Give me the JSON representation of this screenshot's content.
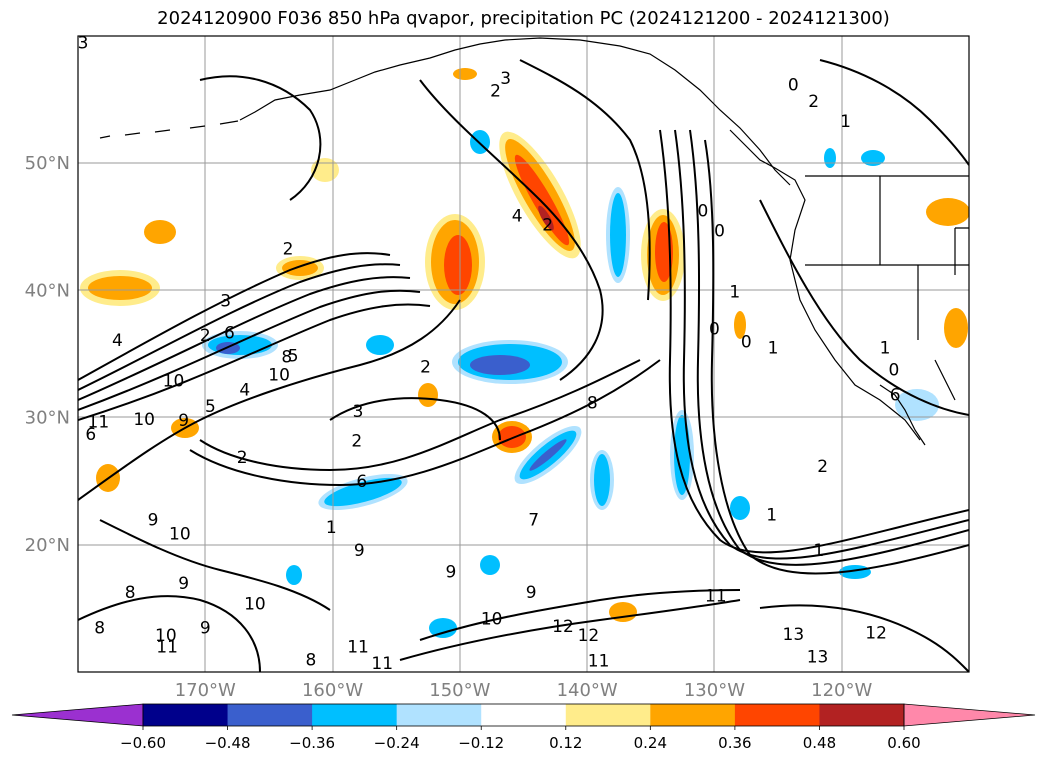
{
  "chart_data": {
    "type": "heatmap",
    "title": "2024120900 F036 850 hPa qvapor, precipitation PC (2024121200 - 2024121300)",
    "map": {
      "lon_range": [
        -180,
        -110
      ],
      "lat_range": [
        10,
        60
      ],
      "lat_ticks": [
        {
          "value": 50,
          "label": "50°N"
        },
        {
          "value": 40,
          "label": "40°N"
        },
        {
          "value": 30,
          "label": "30°N"
        },
        {
          "value": 20,
          "label": "20°N"
        }
      ],
      "lon_ticks": [
        {
          "value": -170,
          "label": "170°W"
        },
        {
          "value": -160,
          "label": "160°W"
        },
        {
          "value": -150,
          "label": "150°W"
        },
        {
          "value": -140,
          "label": "140°W"
        },
        {
          "value": -130,
          "label": "130°W"
        },
        {
          "value": -120,
          "label": "120°W"
        }
      ],
      "grid": true
    },
    "colorbar": {
      "levels": [
        -0.6,
        -0.48,
        -0.36,
        -0.24,
        -0.12,
        0.12,
        0.24,
        0.36,
        0.48,
        0.6
      ],
      "tick_labels": [
        "−0.60",
        "−0.48",
        "−0.36",
        "−0.24",
        "−0.12",
        "0.12",
        "0.24",
        "0.36",
        "0.48",
        "0.60"
      ],
      "colors": [
        "#9b30d0",
        "#00008b",
        "#3a5fcd",
        "#00bfff",
        "#b0e2ff",
        "#ffffff",
        "#ffec8b",
        "#ffa500",
        "#ff4500",
        "#b22222",
        "#ff88aa"
      ],
      "extend": "both"
    },
    "contour_labels": [
      {
        "text": "3",
        "lon": -179.6,
        "lat": 59.5
      },
      {
        "text": "3",
        "lon": -146.4,
        "lat": 56.7
      },
      {
        "text": "2",
        "lon": -147.2,
        "lat": 55.7
      },
      {
        "text": "0",
        "lon": -123.8,
        "lat": 56.2
      },
      {
        "text": "2",
        "lon": -122.2,
        "lat": 54.9
      },
      {
        "text": "1",
        "lon": -119.7,
        "lat": 53.3
      },
      {
        "text": "4",
        "lon": -145.5,
        "lat": 45.9
      },
      {
        "text": "2",
        "lon": -143.1,
        "lat": 45.2
      },
      {
        "text": "0",
        "lon": -130.9,
        "lat": 46.3
      },
      {
        "text": "0",
        "lon": -129.6,
        "lat": 44.7
      },
      {
        "text": "1",
        "lon": -128.4,
        "lat": 39.9
      },
      {
        "text": "2",
        "lon": -170.0,
        "lat": 36.5
      },
      {
        "text": "2",
        "lon": -163.5,
        "lat": 43.3
      },
      {
        "text": "3",
        "lon": -168.4,
        "lat": 39.2
      },
      {
        "text": "4",
        "lon": -176.9,
        "lat": 36.1
      },
      {
        "text": "5",
        "lon": -163.1,
        "lat": 34.9
      },
      {
        "text": "6",
        "lon": -168.1,
        "lat": 36.7
      },
      {
        "text": "8",
        "lon": -163.6,
        "lat": 34.8
      },
      {
        "text": "10",
        "lon": -164.2,
        "lat": 33.4
      },
      {
        "text": "10",
        "lon": -172.5,
        "lat": 32.9
      },
      {
        "text": "4",
        "lon": -166.9,
        "lat": 32.2
      },
      {
        "text": "5",
        "lon": -169.6,
        "lat": 30.9
      },
      {
        "text": "9",
        "lon": -171.7,
        "lat": 29.8
      },
      {
        "text": "10",
        "lon": -174.8,
        "lat": 29.9
      },
      {
        "text": "11",
        "lon": -178.4,
        "lat": 29.7
      },
      {
        "text": "6",
        "lon": -179.0,
        "lat": 28.7
      },
      {
        "text": "3",
        "lon": -158.0,
        "lat": 30.5
      },
      {
        "text": "2",
        "lon": -158.1,
        "lat": 28.2
      },
      {
        "text": "2",
        "lon": -167.1,
        "lat": 26.9
      },
      {
        "text": "2",
        "lon": -152.7,
        "lat": 34.0
      },
      {
        "text": "8",
        "lon": -139.6,
        "lat": 31.2
      },
      {
        "text": "6",
        "lon": -157.7,
        "lat": 25.0
      },
      {
        "text": "1",
        "lon": -160.1,
        "lat": 21.4
      },
      {
        "text": "7",
        "lon": -144.2,
        "lat": 22.0
      },
      {
        "text": "9",
        "lon": -174.1,
        "lat": 22.0
      },
      {
        "text": "10",
        "lon": -172.0,
        "lat": 20.9
      },
      {
        "text": "9",
        "lon": -157.9,
        "lat": 19.6
      },
      {
        "text": "9",
        "lon": -150.7,
        "lat": 17.9
      },
      {
        "text": "9",
        "lon": -171.7,
        "lat": 17.0
      },
      {
        "text": "8",
        "lon": -175.9,
        "lat": 16.3
      },
      {
        "text": "10",
        "lon": -166.1,
        "lat": 15.4
      },
      {
        "text": "9",
        "lon": -170.0,
        "lat": 13.5
      },
      {
        "text": "9",
        "lon": -144.4,
        "lat": 16.3
      },
      {
        "text": "10",
        "lon": -147.5,
        "lat": 14.2
      },
      {
        "text": "12",
        "lon": -141.9,
        "lat": 13.6
      },
      {
        "text": "12",
        "lon": -139.9,
        "lat": 12.9
      },
      {
        "text": "13",
        "lon": -123.8,
        "lat": 13.0
      },
      {
        "text": "12",
        "lon": -117.3,
        "lat": 13.1
      },
      {
        "text": "13",
        "lon": -121.9,
        "lat": 11.2
      },
      {
        "text": "10",
        "lon": -173.1,
        "lat": 12.9
      },
      {
        "text": "11",
        "lon": -173.0,
        "lat": 12.0
      },
      {
        "text": "11",
        "lon": -158.0,
        "lat": 12.0
      },
      {
        "text": "11",
        "lon": -156.1,
        "lat": 10.7
      },
      {
        "text": "11",
        "lon": -139.1,
        "lat": 10.9
      },
      {
        "text": "8",
        "lon": -178.3,
        "lat": 13.5
      },
      {
        "text": "8",
        "lon": -161.7,
        "lat": 11.0
      },
      {
        "text": "11",
        "lon": -129.9,
        "lat": 16.0
      },
      {
        "text": "1",
        "lon": -125.5,
        "lat": 22.4
      },
      {
        "text": "1",
        "lon": -121.8,
        "lat": 19.6
      },
      {
        "text": "2",
        "lon": -121.5,
        "lat": 26.2
      },
      {
        "text": "1",
        "lon": -125.4,
        "lat": 35.5
      },
      {
        "text": "1",
        "lon": -116.6,
        "lat": 35.5
      },
      {
        "text": "0",
        "lon": -115.9,
        "lat": 33.8
      },
      {
        "text": "0",
        "lon": -130.0,
        "lat": 37.0
      },
      {
        "text": "0",
        "lon": -127.5,
        "lat": 36.0
      },
      {
        "text": "6",
        "lon": -115.8,
        "lat": 31.8
      }
    ]
  }
}
